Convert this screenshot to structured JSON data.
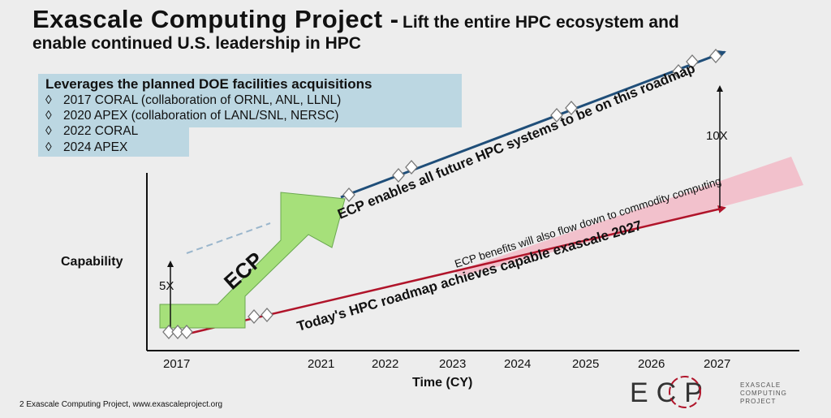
{
  "title": {
    "main": "Exascale Computing Project -",
    "sub": "Lift the entire HPC ecosystem and",
    "line2": "enable continued U.S. leadership in HPC"
  },
  "leverages": {
    "heading": "Leverages the planned DOE facilities acquisitions",
    "bullet": "◊",
    "items": [
      "2017 CORAL (collaboration of ORNL, ANL, LLNL)",
      "2020 APEX (collaboration of LANL/SNL, NERSC)",
      "2022 CORAL",
      "2024 APEX"
    ]
  },
  "chart": {
    "ylabel": "Capability",
    "xlabel": "Time (CY)",
    "ticks": [
      "2017",
      "2021",
      "2022",
      "2023",
      "2024",
      "2025",
      "2026",
      "2027"
    ],
    "ecp_label": "ECP",
    "five_x": "5X",
    "ten_x": "10X",
    "upper_line_label": "ECP enables all future HPC systems to be on this roadmap",
    "lower_line_label": "Today's HPC roadmap achieves capable exascale 2027",
    "band_label": "ECP benefits will also flow down to commodity computing",
    "colors": {
      "upper_line": "#1f4e79",
      "lower_line": "#b0142a",
      "arrow": "#a6e07a",
      "band": "#f2b8c6",
      "box": "#bcd7e2"
    }
  },
  "footer": {
    "text": "2  Exascale Computing Project, www.exascaleproject.org"
  },
  "logo": {
    "letters": "ECP",
    "text1": "EXASCALE",
    "text2": "COMPUTING",
    "text3": "PROJECT"
  }
}
